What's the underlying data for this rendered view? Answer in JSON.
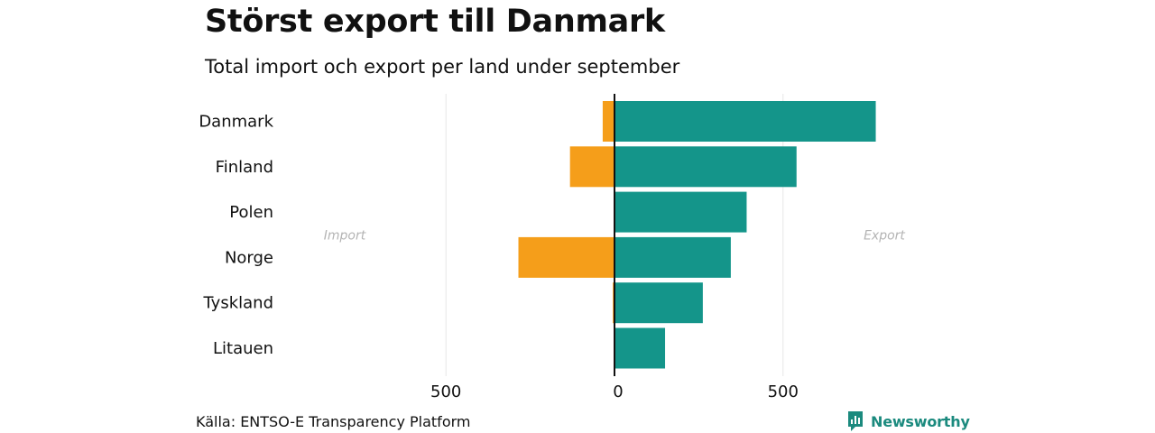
{
  "header": {
    "title": "Störst export till Danmark",
    "subtitle": "Total import och export per land under september"
  },
  "footer": {
    "source": "Källa: ENTSO-E Transparency Platform",
    "brand": "Newsworthy"
  },
  "colors": {
    "import": "#f59e1a",
    "export": "#14958a",
    "brand": "#1b8a7e",
    "side_label": "#b4b4b4",
    "grid": "#e6e6e6"
  },
  "chart_data": {
    "type": "bar",
    "orientation": "horizontal-diverging",
    "title": "Störst export till Danmark",
    "subtitle": "Total import och export per land under september",
    "categories": [
      "Danmark",
      "Finland",
      "Polen",
      "Norge",
      "Tyskland",
      "Litauen"
    ],
    "series": [
      {
        "name": "Import",
        "side": "left",
        "values": [
          35,
          132,
          0,
          285,
          5,
          0
        ]
      },
      {
        "name": "Export",
        "side": "right",
        "values": [
          775,
          540,
          392,
          345,
          262,
          150
        ]
      }
    ],
    "side_labels": {
      "left": "Import",
      "right": "Export"
    },
    "xlim": [
      -500,
      1000
    ],
    "xticks": [
      {
        "value": -500,
        "label": "500"
      },
      {
        "value": 0,
        "label": "0"
      },
      {
        "value": 500,
        "label": "500"
      }
    ],
    "grid": true,
    "legend": "none"
  }
}
